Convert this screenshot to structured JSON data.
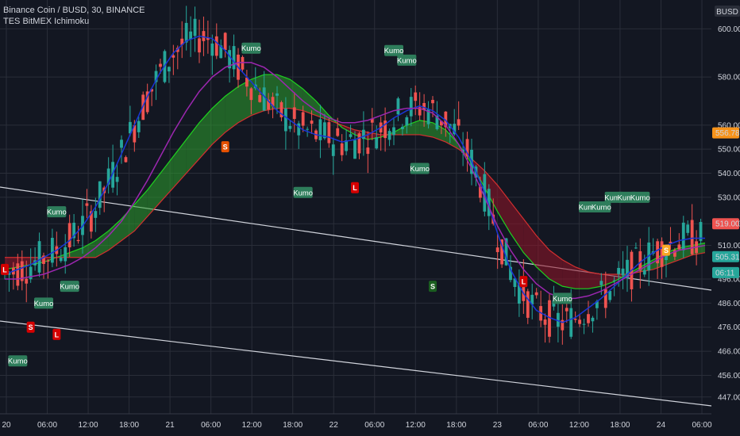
{
  "header": {
    "symbol_line": "Binance Coin / BUSD, 30, BINANCE",
    "indicator_name": "TES BitMEX Ichimoku"
  },
  "currency": "BUSD",
  "price_tags": [
    {
      "value": 556.78,
      "label": "556.78",
      "color": "#f7931a",
      "text_color": "#131722"
    },
    {
      "value": 519.0,
      "label": "519.00",
      "color": "#ef5350",
      "text_color": "#ffffff"
    },
    {
      "value": 505.31,
      "label": "505.31",
      "color": "#26a69a",
      "text_color": "#ffffff"
    },
    {
      "value": 498.7,
      "label": "06:11",
      "color": "#26a69a",
      "text_color": "#ffffff"
    }
  ],
  "chart_data": {
    "type": "line",
    "symbol": "Binance Coin / BUSD",
    "timeframe": "30",
    "exchange": "BINANCE",
    "y_ticks": [
      447,
      456,
      466,
      476,
      486,
      496,
      510,
      519,
      530,
      540,
      550,
      560,
      580,
      600
    ],
    "x_ticks": [
      "20",
      "06:00",
      "12:00",
      "18:00",
      "21",
      "06:00",
      "12:00",
      "18:00",
      "22",
      "06:00",
      "12:00",
      "18:00",
      "23",
      "06:00",
      "12:00",
      "18:00",
      "24",
      "06:00"
    ],
    "ylim": [
      440,
      612
    ],
    "series": [
      {
        "color": "#1a35d6",
        "values": [
          498,
          500,
          502,
          505,
          508,
          512,
          518,
          526,
          536,
          548,
          560,
          572,
          582,
          590,
          595,
          597,
          596,
          591,
          584,
          578,
          572,
          566,
          562,
          558,
          556,
          555,
          553,
          554,
          556,
          559,
          563,
          566,
          568,
          566,
          562,
          555,
          545,
          532,
          515,
          500,
          490,
          483,
          480,
          478,
          480,
          484,
          488,
          493,
          498,
          503,
          507,
          510,
          512,
          513,
          513
        ]
      },
      {
        "color": "#9c27b0",
        "values": [
          496,
          496,
          497,
          498,
          500,
          502,
          505,
          509,
          514,
          520,
          528,
          537,
          547,
          557,
          566,
          574,
          580,
          584,
          586,
          586,
          584,
          580,
          575,
          570,
          566,
          563,
          561,
          561,
          562,
          564,
          566,
          567,
          567,
          565,
          560,
          552,
          542,
          530,
          518,
          508,
          500,
          494,
          490,
          488,
          488,
          489,
          491,
          494,
          497,
          500,
          503,
          506,
          508,
          509,
          510
        ]
      },
      {
        "color": "#2e7d32",
        "name": "",
        "values": [
          500,
          501,
          502,
          503,
          505,
          507,
          509,
          512,
          516,
          521,
          527,
          533,
          540,
          547,
          554,
          561,
          567,
          572,
          576,
          579,
          581,
          581,
          579,
          575,
          570,
          564,
          559,
          556,
          554,
          555,
          557,
          560,
          562,
          561,
          558,
          552,
          544,
          534,
          524,
          515,
          507,
          501,
          496,
          493,
          492,
          492,
          493,
          495,
          498,
          501,
          504,
          507,
          509,
          510,
          511
        ]
      },
      {
        "color": "#c62828",
        "name": "",
        "values": [
          505,
          505,
          505,
          505,
          505,
          505,
          505,
          505,
          508,
          512,
          516,
          522,
          528,
          534,
          540,
          546,
          552,
          557,
          561,
          564,
          566,
          567,
          567,
          566,
          564,
          562,
          560,
          558,
          557,
          556,
          556,
          556,
          556,
          555,
          553,
          550,
          546,
          541,
          535,
          528,
          521,
          514,
          508,
          504,
          501,
          499,
          498,
          498,
          498,
          499,
          500,
          502,
          504,
          506,
          507
        ]
      }
    ],
    "signals": [
      {
        "label": "L",
        "x_index": 0,
        "y": 500,
        "color": "#d50000"
      },
      {
        "label": "S",
        "x_index": 2,
        "y": 476,
        "color": "#d50000"
      },
      {
        "label": "L",
        "x_index": 4,
        "y": 473,
        "color": "#d50000"
      },
      {
        "label": "S",
        "x_index": 17,
        "y": 551,
        "color": "#e65100"
      },
      {
        "label": "L",
        "x_index": 27,
        "y": 534,
        "color": "#d50000"
      },
      {
        "label": "S",
        "x_index": 33,
        "y": 493,
        "color": "#1b5e20"
      },
      {
        "label": "L",
        "x_index": 40,
        "y": 495,
        "color": "#d50000"
      },
      {
        "label": "S",
        "x_index": 51,
        "y": 508,
        "color": "#f9a825"
      }
    ],
    "kumo_labels": [
      {
        "x_index": 1,
        "y": 462
      },
      {
        "x_index": 3,
        "y": 486
      },
      {
        "x_index": 4,
        "y": 524
      },
      {
        "x_index": 5,
        "y": 493
      },
      {
        "x_index": 19,
        "y": 592
      },
      {
        "x_index": 23,
        "y": 532
      },
      {
        "x_index": 30,
        "y": 591
      },
      {
        "x_index": 31,
        "y": 587
      },
      {
        "x_index": 32,
        "y": 542
      },
      {
        "x_index": 43,
        "y": 488
      },
      {
        "x_index": 45,
        "y": 526
      },
      {
        "x_index": 46,
        "y": 526
      },
      {
        "x_index": 47,
        "y": 530
      },
      {
        "x_index": 48,
        "y": 530
      },
      {
        "x_index": 49,
        "y": 530
      }
    ]
  }
}
